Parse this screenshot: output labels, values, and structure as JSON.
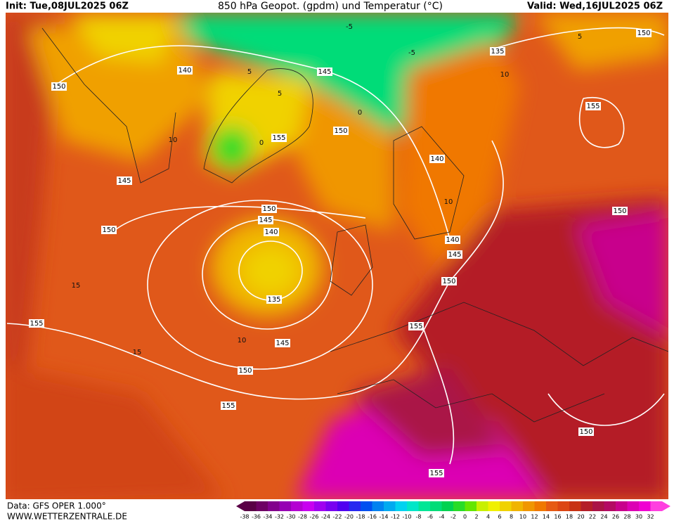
{
  "header": {
    "init": "Init: Tue,08JUL2025 06Z",
    "title": "850 hPa Geopot. (gpdm) und Temperatur (°C)",
    "valid": "Valid: Wed,16JUL2025 06Z"
  },
  "footer": {
    "source": "Data: GFS OPER 1.000°",
    "website": "WWW.WETTERZENTRALE.DE"
  },
  "legend": {
    "values": [
      -38,
      -36,
      -34,
      -32,
      -30,
      -28,
      -26,
      -24,
      -22,
      -20,
      -18,
      -16,
      -14,
      -12,
      -10,
      -8,
      -6,
      -4,
      -2,
      0,
      2,
      4,
      6,
      8,
      10,
      12,
      14,
      16,
      18,
      20,
      22,
      24,
      26,
      28,
      30,
      32
    ],
    "colors": [
      "#5a0046",
      "#6e0064",
      "#82008c",
      "#9600b4",
      "#b400d2",
      "#c800f0",
      "#a000f0",
      "#7800f0",
      "#5000f0",
      "#2828f0",
      "#0050f0",
      "#0082f0",
      "#00aaf0",
      "#00d2f0",
      "#00e6c8",
      "#00e696",
      "#00dc78",
      "#00d250",
      "#28dc28",
      "#64e600",
      "#c8f000",
      "#f0f000",
      "#f0d200",
      "#f0b400",
      "#f09600",
      "#f07800",
      "#e65a14",
      "#dc4614",
      "#c83214",
      "#b41e28",
      "#aa1446",
      "#b40a64",
      "#c8008c",
      "#dc00b4",
      "#f000d2",
      "#ff40e0"
    ]
  },
  "geopotential_labels": [
    150,
    140,
    145,
    150,
    155,
    145,
    150,
    150,
    145,
    140,
    135,
    145,
    150,
    155,
    155,
    155,
    150,
    145,
    140,
    140,
    135,
    150,
    155,
    150,
    150,
    155
  ],
  "temperature_labels": [
    -5,
    -5,
    0,
    5,
    5,
    5,
    10,
    10,
    10,
    15,
    15,
    10,
    0
  ]
}
